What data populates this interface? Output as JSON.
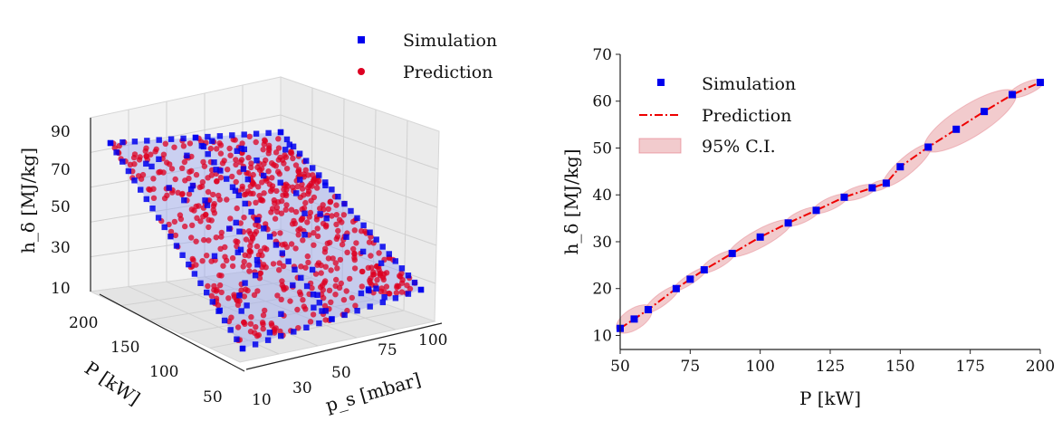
{
  "chart_data": [
    {
      "type": "scatter3d",
      "zlabel": "h_δ [MJ/kg]",
      "ylabel": "P [kW]",
      "xlabel": "p_s [mbar]",
      "z_ticks": [
        "90",
        "70",
        "50",
        "30",
        "10"
      ],
      "p_ticks": [
        "200",
        "150",
        "100",
        "50"
      ],
      "ps_ticks": [
        "10",
        "30",
        "50",
        "75",
        "100"
      ],
      "p_range": [
        50,
        200
      ],
      "ps_range": [
        10,
        100
      ],
      "z_range": [
        10,
        90
      ],
      "legend": {
        "placement": "top-right",
        "entries": [
          "Simulation",
          "Prediction"
        ]
      },
      "grid": true,
      "colors": {
        "simulation": "#0000ee",
        "prediction": "#dd0022",
        "plane": "#9aa6f0"
      }
    },
    {
      "type": "line",
      "xlabel": "P [kW]",
      "ylabel": "h_δ [MJ/kg]",
      "xlim": [
        50,
        200
      ],
      "ylim": [
        7,
        70
      ],
      "x_ticks": [
        50,
        75,
        100,
        125,
        150,
        175,
        200
      ],
      "y_ticks": [
        10,
        20,
        30,
        40,
        50,
        60,
        70
      ],
      "legend": {
        "placement": "top-left",
        "entries": [
          "Simulation",
          "Prediction",
          "95% C.I."
        ]
      },
      "series": [
        {
          "name": "Simulation",
          "x": [
            50,
            55,
            60,
            70,
            75,
            80,
            90,
            100,
            110,
            120,
            130,
            140,
            145,
            150,
            160,
            170,
            180,
            190,
            200
          ],
          "y": [
            11.5,
            13.5,
            15.5,
            20.0,
            22.0,
            24.0,
            27.5,
            31.0,
            34.0,
            36.7,
            39.5,
            41.5,
            42.5,
            46.0,
            50.2,
            54.0,
            57.8,
            61.4,
            64.0
          ]
        },
        {
          "name": "Prediction",
          "x": [
            50,
            55,
            60,
            70,
            75,
            80,
            90,
            100,
            110,
            120,
            130,
            140,
            145,
            150,
            160,
            170,
            180,
            190,
            200
          ],
          "y": [
            11.5,
            13.5,
            15.5,
            20.0,
            22.0,
            24.0,
            27.5,
            31.0,
            34.0,
            36.7,
            39.5,
            41.5,
            42.5,
            46.0,
            50.2,
            54.0,
            57.8,
            61.4,
            64.0
          ]
        }
      ],
      "ci_segments": [
        {
          "x0": 50,
          "y0": 11.5,
          "x1": 60,
          "y1": 15.5,
          "half_width": 1.8
        },
        {
          "x0": 60,
          "y0": 15.5,
          "x1": 70,
          "y1": 20.0,
          "half_width": 0.9
        },
        {
          "x0": 70,
          "y0": 20.0,
          "x1": 80,
          "y1": 24.0,
          "half_width": 0.6
        },
        {
          "x0": 80,
          "y0": 24.0,
          "x1": 90,
          "y1": 27.5,
          "half_width": 0.9
        },
        {
          "x0": 90,
          "y0": 27.5,
          "x1": 110,
          "y1": 34.0,
          "half_width": 1.5
        },
        {
          "x0": 110,
          "y0": 34.0,
          "x1": 120,
          "y1": 36.7,
          "half_width": 0.9
        },
        {
          "x0": 120,
          "y0": 36.7,
          "x1": 130,
          "y1": 39.5,
          "half_width": 0.9
        },
        {
          "x0": 130,
          "y0": 39.5,
          "x1": 140,
          "y1": 41.5,
          "half_width": 0.9
        },
        {
          "x0": 140,
          "y0": 41.5,
          "x1": 145,
          "y1": 42.5,
          "half_width": 0.6
        },
        {
          "x0": 145,
          "y0": 42.5,
          "x1": 160,
          "y1": 50.2,
          "half_width": 1.4
        },
        {
          "x0": 160,
          "y0": 50.2,
          "x1": 190,
          "y1": 61.4,
          "half_width": 3.0
        },
        {
          "x0": 190,
          "y0": 61.4,
          "x1": 200,
          "y1": 64.0,
          "half_width": 0.9
        }
      ],
      "colors": {
        "simulation": "#0000ee",
        "prediction": "#ee0000",
        "ci": "#e8a0a4"
      }
    }
  ]
}
